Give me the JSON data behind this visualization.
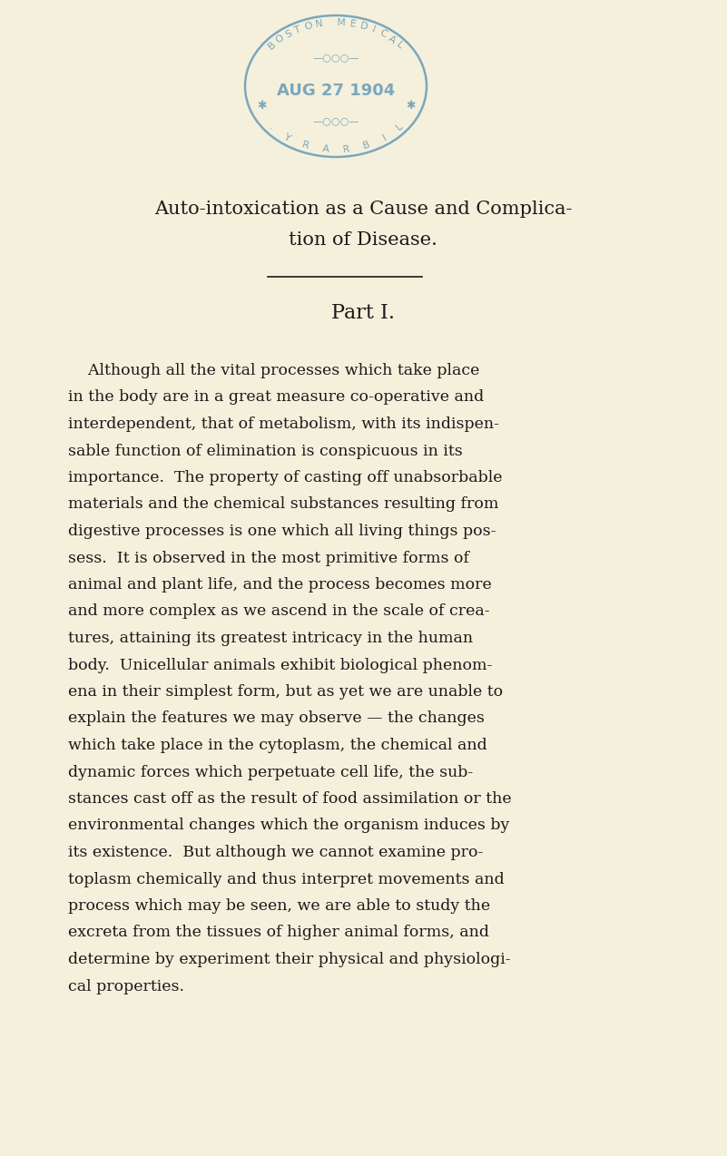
{
  "bg_color": "#f5f0dc",
  "stamp_color": "#7ba7bc",
  "text_color": "#1a1a1a",
  "title_line1": "Auto-intoxication as a Cause and Complica-",
  "title_line2": "tion of Disease.",
  "separator_text": "———————",
  "section": "Part I.",
  "stamp_date": "AUG 27 1904",
  "stamp_top_text": "BOSTON MEDICAL",
  "stamp_bottom_text": "LIBRARY.",
  "paragraph_lines": [
    "    Although all the vital processes which take place",
    "in the body are in a great measure co-operative and",
    "interdependent, that of metabolism, with its indispen-",
    "sable function of elimination is conspicuous in its",
    "importance.  The property of casting off unabsorbable",
    "materials and the chemical substances resulting from",
    "digestive processes is one which all living things pos-",
    "sess.  It is observed in the most primitive forms of",
    "animal and plant life, and the process becomes more",
    "and more complex as we ascend in the scale of crea-",
    "tures, attaining its greatest intricacy in the human",
    "body.  Unicellular animals exhibit biological phenom-",
    "ena in their simplest form, but as yet we are unable to",
    "explain the features we may observe — the changes",
    "which take place in the cytoplasm, the chemical and",
    "dynamic forces which perpetuate cell life, the sub-",
    "stances cast off as the result of food assimilation or the",
    "environmental changes which the organism induces by",
    "its existence.  But although we cannot examine pro-",
    "toplasm chemically and thus interpret movements and",
    "process which may be seen, we are able to study the",
    "excreta from the tissues of higher animal forms, and",
    "determine by experiment their physical and physiologi-",
    "cal properties."
  ]
}
